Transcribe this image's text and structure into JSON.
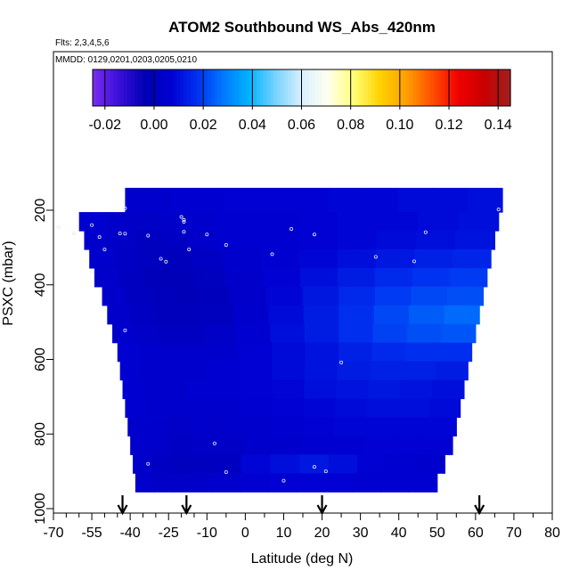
{
  "chart_data": {
    "type": "heatmap",
    "title": "ATOM2 Southbound WS_Abs_420nm",
    "flights_label": "Flts: 2,3,4,5,6",
    "dates_label": "MMDD: 0129,0201,0203,0205,0210",
    "xlabel": "Latitude (deg N)",
    "ylabel": "PSXC (mbar)",
    "xlim": [
      -70,
      80
    ],
    "ylim": [
      1000,
      100
    ],
    "x_ticks": [
      -70,
      -55,
      -40,
      -25,
      -10,
      0,
      10,
      20,
      30,
      40,
      50,
      60,
      70,
      80
    ],
    "x_minor_ticks": [
      -65,
      -60,
      -50,
      -45,
      -35,
      -30,
      -20,
      -15,
      -5,
      5,
      15,
      25,
      35,
      45,
      55,
      65,
      75
    ],
    "y_ticks": [
      200,
      400,
      600,
      800,
      1000
    ],
    "colorbar": {
      "range": [
        -0.025,
        0.145
      ],
      "ticks": [
        -0.02,
        0.0,
        0.02,
        0.04,
        0.06,
        0.08,
        0.1,
        0.12,
        0.14
      ],
      "tick_labels": [
        "-0.02",
        "0.00",
        "0.02",
        "0.04",
        "0.06",
        "0.08",
        "0.10",
        "0.12",
        "0.14"
      ],
      "colors": [
        "#7b2cf0",
        "#3a0fd8",
        "#0000b4",
        "#0000d2",
        "#0030f0",
        "#0078ff",
        "#00b4ff",
        "#78d2ff",
        "#d8f0ff",
        "#fffff0",
        "#ffff78",
        "#ffd200",
        "#ffa000",
        "#ff5000",
        "#f00000",
        "#c80000",
        "#a02020"
      ]
    },
    "rows": [
      {
        "p": 180,
        "lat_min": -42,
        "lat_max": 67,
        "values": [
          0.005,
          0.005,
          0.006,
          0.006,
          0.007,
          0.007,
          0.007,
          0.008,
          0.008,
          0.009,
          0.009,
          0.01
        ]
      },
      {
        "p": 230,
        "lat_min": -60,
        "lat_max": 66,
        "values": [
          0.006,
          0.004,
          0.003,
          0.004,
          0.005,
          0.006,
          0.006,
          0.007,
          0.008,
          0.008,
          0.009,
          0.01
        ]
      },
      {
        "p": 280,
        "lat_min": -58,
        "lat_max": 65,
        "values": [
          0.005,
          0.003,
          0.001,
          0.002,
          0.004,
          0.006,
          0.006,
          0.007,
          0.008,
          0.009,
          0.01,
          0.011
        ]
      },
      {
        "p": 330,
        "lat_min": -56,
        "lat_max": 64,
        "values": [
          0.005,
          0.002,
          0.0,
          -0.001,
          0.002,
          0.005,
          0.006,
          0.008,
          0.01,
          0.012,
          0.014,
          0.015
        ]
      },
      {
        "p": 380,
        "lat_min": -54,
        "lat_max": 63,
        "values": [
          0.004,
          0.001,
          -0.002,
          -0.002,
          0.0,
          0.004,
          0.007,
          0.01,
          0.013,
          0.016,
          0.018,
          0.019
        ]
      },
      {
        "p": 430,
        "lat_min": -51,
        "lat_max": 62,
        "values": [
          0.004,
          0.001,
          -0.001,
          -0.002,
          -0.001,
          0.004,
          0.008,
          0.012,
          0.016,
          0.019,
          0.021,
          0.022
        ]
      },
      {
        "p": 480,
        "lat_min": -49,
        "lat_max": 61,
        "values": [
          0.004,
          0.002,
          -0.001,
          -0.001,
          0.0,
          0.005,
          0.009,
          0.013,
          0.017,
          0.021,
          0.024,
          0.026
        ]
      },
      {
        "p": 530,
        "lat_min": -47,
        "lat_max": 60,
        "values": [
          0.005,
          0.003,
          0.001,
          0.001,
          0.003,
          0.006,
          0.01,
          0.013,
          0.017,
          0.02,
          0.022,
          0.023
        ]
      },
      {
        "p": 580,
        "lat_min": -45,
        "lat_max": 59,
        "values": [
          0.006,
          0.005,
          0.004,
          0.004,
          0.005,
          0.007,
          0.009,
          0.011,
          0.014,
          0.016,
          0.017,
          0.017
        ]
      },
      {
        "p": 630,
        "lat_min": -44,
        "lat_max": 58,
        "values": [
          0.006,
          0.005,
          0.005,
          0.005,
          0.006,
          0.007,
          0.009,
          0.011,
          0.013,
          0.014,
          0.014,
          0.013
        ]
      },
      {
        "p": 680,
        "lat_min": -43,
        "lat_max": 57,
        "values": [
          0.006,
          0.005,
          0.005,
          0.006,
          0.006,
          0.007,
          0.008,
          0.01,
          0.011,
          0.012,
          0.011,
          0.01
        ]
      },
      {
        "p": 730,
        "lat_min": -42,
        "lat_max": 56,
        "values": [
          0.006,
          0.005,
          0.004,
          0.005,
          0.005,
          0.006,
          0.007,
          0.008,
          0.009,
          0.01,
          0.01,
          0.009
        ]
      },
      {
        "p": 780,
        "lat_min": -41,
        "lat_max": 55,
        "values": [
          0.005,
          0.004,
          0.003,
          0.004,
          0.004,
          0.005,
          0.006,
          0.007,
          0.008,
          0.008,
          0.008,
          0.008
        ]
      },
      {
        "p": 830,
        "lat_min": -40,
        "lat_max": 54,
        "values": [
          0.005,
          0.004,
          0.002,
          0.003,
          0.003,
          0.004,
          0.005,
          0.006,
          0.006,
          0.007,
          0.007,
          0.007
        ]
      },
      {
        "p": 880,
        "lat_min": -39,
        "lat_max": 52,
        "values": [
          0.004,
          0.002,
          0.0,
          0.0,
          0.001,
          0.008,
          0.01,
          0.012,
          0.01,
          0.007,
          0.006,
          0.005
        ]
      },
      {
        "p": 930,
        "lat_min": -38,
        "lat_max": 50,
        "values": [
          0.004,
          0.003,
          0.003,
          0.004,
          0.005,
          0.006,
          0.007,
          0.007,
          0.007,
          0.006,
          0.006,
          0.006
        ]
      }
    ],
    "sample_points": [
      [
        -42,
        195
      ],
      [
        -68,
        245
      ],
      [
        -62,
        262
      ],
      [
        -55,
        240
      ],
      [
        -52,
        272
      ],
      [
        -50,
        305
      ],
      [
        -44,
        262
      ],
      [
        -42,
        263
      ],
      [
        -33,
        268
      ],
      [
        -28,
        330
      ],
      [
        -26,
        338
      ],
      [
        -20,
        218
      ],
      [
        -19,
        226
      ],
      [
        -19,
        231
      ],
      [
        -19,
        258
      ],
      [
        -17,
        305
      ],
      [
        -10,
        265
      ],
      [
        -5,
        293
      ],
      [
        7,
        318
      ],
      [
        12,
        250
      ],
      [
        18,
        265
      ],
      [
        34,
        325
      ],
      [
        44,
        337
      ],
      [
        47,
        259
      ],
      [
        66,
        198
      ],
      [
        -55,
        366
      ],
      [
        -42,
        522
      ],
      [
        25,
        608
      ],
      [
        18,
        888
      ],
      [
        21,
        900
      ],
      [
        10,
        925
      ],
      [
        -5,
        902
      ],
      [
        -8,
        825
      ],
      [
        -33,
        880
      ]
    ],
    "arrows_lat": [
      -43,
      -18,
      20,
      61
    ]
  }
}
